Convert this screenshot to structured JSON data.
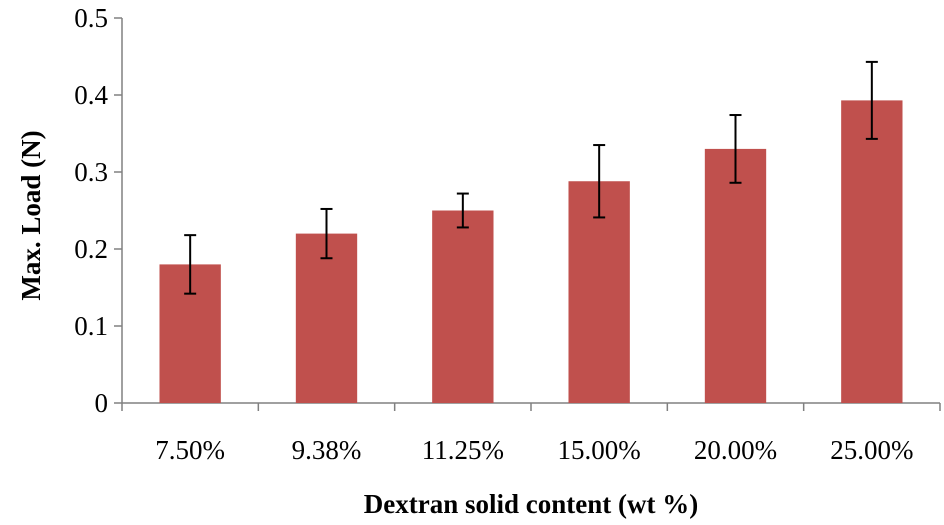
{
  "chart_data": {
    "type": "bar",
    "categories": [
      "7.50%",
      "9.38%",
      "11.25%",
      "15.00%",
      "20.00%",
      "25.00%"
    ],
    "values": [
      0.18,
      0.22,
      0.25,
      0.288,
      0.33,
      0.393
    ],
    "error": [
      0.038,
      0.032,
      0.022,
      0.047,
      0.044,
      0.05
    ],
    "xlabel": "Dextran solid content (wt %)",
    "ylabel": "Max. Load (N)",
    "ylim": [
      0,
      0.5
    ],
    "yticks": [
      "0",
      "0.1",
      "0.2",
      "0.3",
      "0.4",
      "0.5"
    ],
    "grid": false,
    "legend": "none",
    "bar_color": "#c0504d"
  }
}
